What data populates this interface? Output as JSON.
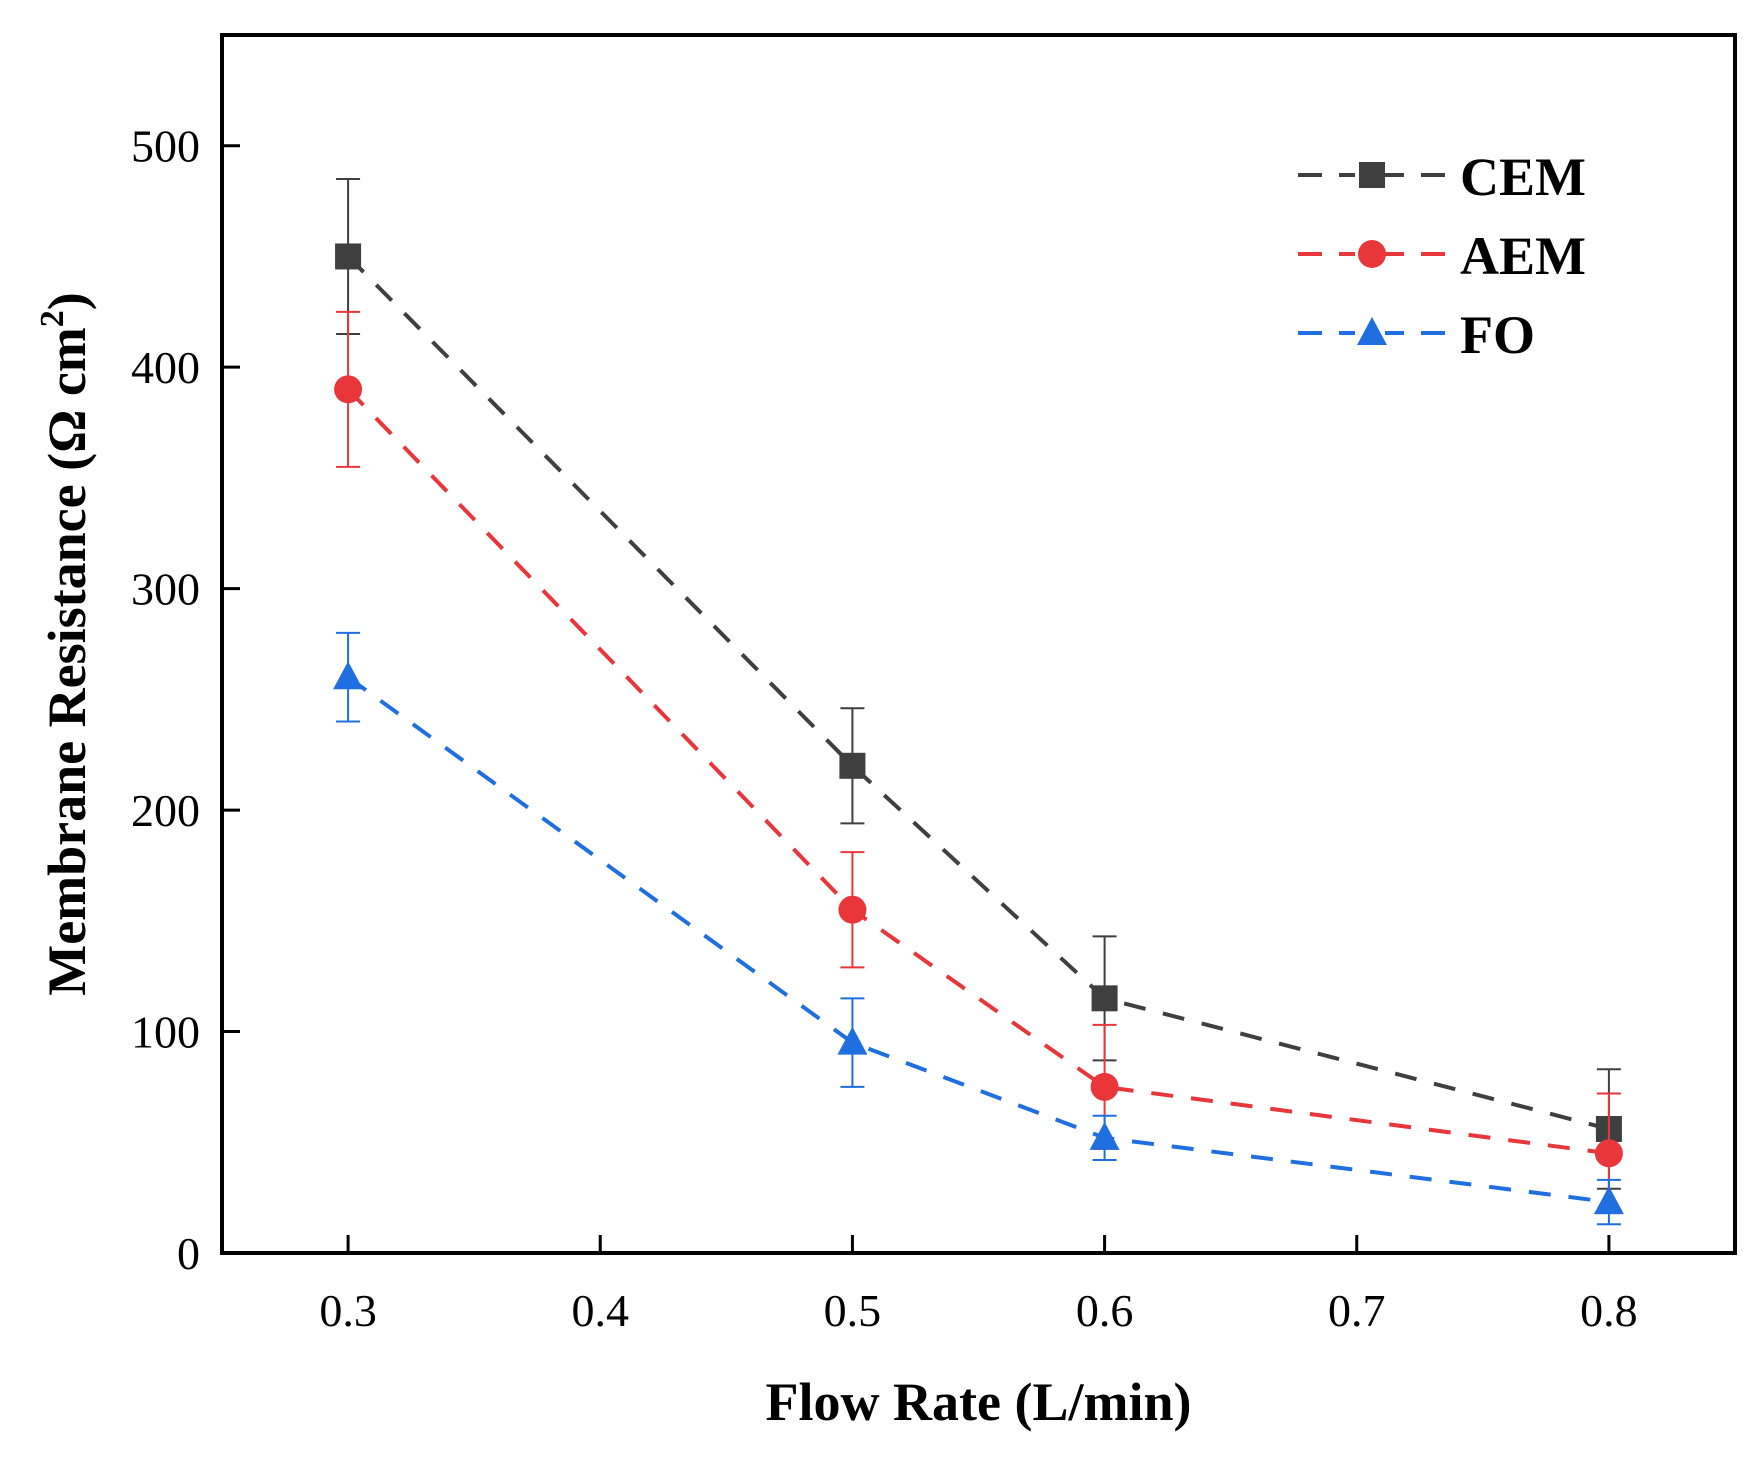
{
  "chart_data": {
    "type": "line",
    "xlabel": "Flow Rate (L/min)",
    "ylabel_main": "Membrane Resistance (Ω cm",
    "ylabel_sup": "2",
    "ylabel_close": ")",
    "xlim": [
      0.25,
      0.85
    ],
    "ylim": [
      0,
      550
    ],
    "xticks": [
      0.3,
      0.4,
      0.5,
      0.6,
      0.7,
      0.8
    ],
    "xtick_labels": [
      "0.3",
      "0.4",
      "0.5",
      "0.6",
      "0.7",
      "0.8"
    ],
    "yticks": [
      0,
      100,
      200,
      300,
      400,
      500
    ],
    "ytick_labels": [
      "0",
      "100",
      "200",
      "300",
      "400",
      "500"
    ],
    "grid": false,
    "legend_position": "top-right",
    "x": [
      0.3,
      0.5,
      0.6,
      0.8
    ],
    "series": [
      {
        "name": "CEM",
        "marker": "square",
        "color": "#3f3f3f",
        "values": [
          450,
          220,
          115,
          56
        ],
        "errors": [
          35,
          26,
          28,
          27
        ]
      },
      {
        "name": "AEM",
        "marker": "circle",
        "color": "#e8363b",
        "values": [
          390,
          155,
          75,
          45
        ],
        "errors": [
          35,
          26,
          28,
          27
        ]
      },
      {
        "name": "FO",
        "marker": "triangle",
        "color": "#1f6fe0",
        "values": [
          260,
          95,
          52,
          23
        ],
        "errors": [
          20,
          20,
          10,
          10
        ]
      }
    ]
  }
}
